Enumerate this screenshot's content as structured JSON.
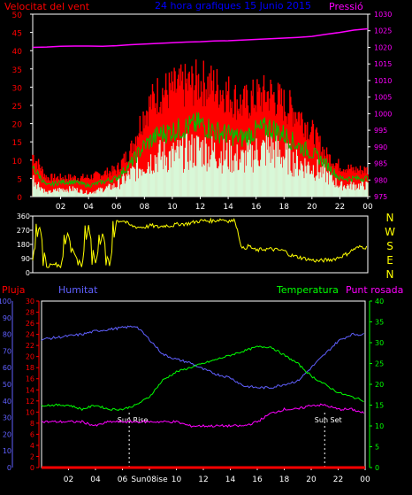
{
  "colors": {
    "background": "#000000",
    "axis": "#ffffff",
    "wind_gust": "#ff0000",
    "wind_avg": "#00c000",
    "wind_min": "#d8f8d8",
    "pressure": "#ff00ff",
    "direction": "#ffff00",
    "rain": "#ff0000",
    "humidity": "#6060ff",
    "temperature": "#00ff00",
    "dew_point": "#ff00ff",
    "title": "#0000ff"
  },
  "chart_data": [
    {
      "type": "line",
      "title": "24 hora grafiques  15 Junio 2015",
      "left_label": "Velocitat del vent",
      "right_label": "Pressió",
      "ylim_left": [
        0,
        50
      ],
      "ylim_right": [
        975,
        1030
      ],
      "yticks_left": [
        "50",
        "45",
        "40",
        "35",
        "30",
        "25",
        "20",
        "15",
        "10",
        "5",
        "0"
      ],
      "yticks_right": [
        "1030",
        "1025",
        "1020",
        "1015",
        "1010",
        "1005",
        "1000",
        "995",
        "990",
        "985",
        "980",
        "975"
      ],
      "x_hours": [
        0,
        1,
        2,
        3,
        4,
        5,
        6,
        7,
        8,
        9,
        10,
        11,
        12,
        13,
        14,
        15,
        16,
        17,
        18,
        19,
        20,
        21,
        22,
        23,
        24
      ],
      "x_tick_labels": [
        "02",
        "04",
        "06",
        "08",
        "10",
        "12",
        "14",
        "16",
        "18",
        "20",
        "22",
        "00"
      ],
      "series": [
        {
          "key": "gust",
          "values": [
            11,
            5,
            5,
            5,
            5,
            6,
            7,
            12,
            22,
            27,
            28,
            29,
            30,
            29,
            27,
            24,
            26,
            27,
            24,
            22,
            17,
            11,
            8,
            7,
            7
          ]
        },
        {
          "key": "avg",
          "values": [
            8,
            3,
            4,
            4,
            3,
            4,
            5,
            9,
            14,
            17,
            18,
            19,
            20,
            18,
            17,
            16,
            18,
            19,
            17,
            14,
            12,
            9,
            5,
            5,
            5
          ]
        },
        {
          "key": "min",
          "values": [
            5,
            1,
            2,
            2,
            1,
            2,
            3,
            6,
            9,
            11,
            11,
            12,
            13,
            12,
            11,
            10,
            12,
            13,
            11,
            9,
            8,
            6,
            3,
            3,
            3
          ]
        },
        {
          "key": "pressure",
          "values": [
            1020.0,
            1020.1,
            1020.3,
            1020.4,
            1020.4,
            1020.3,
            1020.5,
            1020.8,
            1021.0,
            1021.2,
            1021.4,
            1021.6,
            1021.7,
            1021.9,
            1022.0,
            1022.2,
            1022.4,
            1022.6,
            1022.8,
            1023.0,
            1023.3,
            1023.9,
            1024.5,
            1025.2,
            1025.6
          ]
        }
      ]
    },
    {
      "type": "line",
      "right_labels": [
        "N",
        "W",
        "S",
        "E",
        "N"
      ],
      "yticks_left": [
        "360",
        "270",
        "180",
        "90",
        "0"
      ],
      "ylim": [
        0,
        360
      ],
      "series": [
        {
          "key": "direction",
          "x": [
            0,
            0.5,
            1,
            1.5,
            2,
            2.5,
            3,
            3.5,
            4,
            4.5,
            5,
            5.5,
            6,
            6.5,
            7,
            7.5,
            8,
            8.5,
            9,
            9.5,
            10,
            10.5,
            11,
            11.5,
            12,
            12.5,
            13,
            13.5,
            14,
            14.5,
            15,
            15.5,
            16,
            16.5,
            17,
            17.5,
            18,
            18.5,
            19,
            19.5,
            20,
            20.5,
            21,
            21.5,
            22,
            22.5,
            23,
            23.5,
            24
          ],
          "values": [
            90,
            300,
            40,
            60,
            40,
            250,
            120,
            40,
            300,
            60,
            250,
            40,
            330,
            330,
            300,
            290,
            290,
            300,
            290,
            300,
            300,
            310,
            310,
            320,
            330,
            330,
            330,
            340,
            330,
            330,
            150,
            170,
            140,
            150,
            150,
            145,
            140,
            110,
            100,
            90,
            80,
            75,
            80,
            85,
            100,
            120,
            150,
            165,
            160
          ]
        }
      ]
    },
    {
      "type": "line",
      "labels": {
        "rain": "Pluja",
        "humidity": "Humitat",
        "temperature": "Temperatura",
        "dew_point": "Punt rosada"
      },
      "yticks_humidity": [
        "100",
        "90",
        "80",
        "70",
        "60",
        "50",
        "40",
        "30",
        "20",
        "10",
        "0"
      ],
      "yticks_rain": [
        "30",
        "28",
        "26",
        "24",
        "22",
        "20",
        "18",
        "16",
        "14",
        "12",
        "10",
        "8",
        "6",
        "4",
        "2",
        "0"
      ],
      "yticks_temp": [
        "40",
        "35",
        "30",
        "25",
        "20",
        "15",
        "10",
        "5",
        "0"
      ],
      "ylim_humidity": [
        0,
        100
      ],
      "ylim_rain": [
        0,
        30
      ],
      "ylim_temp": [
        0,
        40
      ],
      "annotations": [
        {
          "label": "Sun Rise",
          "hour": 6.5
        },
        {
          "label": "Sun Set",
          "hour": 21.0
        }
      ],
      "x_tick_labels": [
        "02",
        "04",
        "06",
        "Sun08ise",
        "10",
        "12",
        "14",
        "16",
        "18",
        "20",
        "22",
        "00"
      ],
      "series": [
        {
          "key": "rain",
          "values": [
            0,
            0,
            0,
            0,
            0,
            0,
            0,
            0,
            0,
            0,
            0,
            0,
            0,
            0,
            0,
            0,
            0,
            0,
            0,
            0,
            0,
            0,
            0,
            0,
            0
          ]
        },
        {
          "key": "humidity",
          "values": [
            77,
            78,
            79,
            80,
            82,
            83,
            84,
            85,
            77,
            68,
            65,
            63,
            59,
            56,
            54,
            49,
            48,
            48,
            50,
            52,
            60,
            68,
            76,
            80,
            80
          ]
        },
        {
          "key": "temperature",
          "values": [
            15,
            15,
            15,
            14,
            15,
            14,
            14,
            15,
            17,
            21,
            23,
            24,
            25,
            26,
            27,
            28,
            29,
            29,
            27,
            25,
            22,
            20,
            18,
            17,
            16
          ]
        },
        {
          "key": "dew_point",
          "values": [
            11,
            11,
            11,
            11,
            10,
            11,
            11,
            11,
            11,
            11,
            11,
            10,
            10,
            10,
            10,
            10,
            11,
            13,
            14,
            14,
            15,
            15,
            14,
            14,
            13
          ]
        }
      ]
    }
  ]
}
